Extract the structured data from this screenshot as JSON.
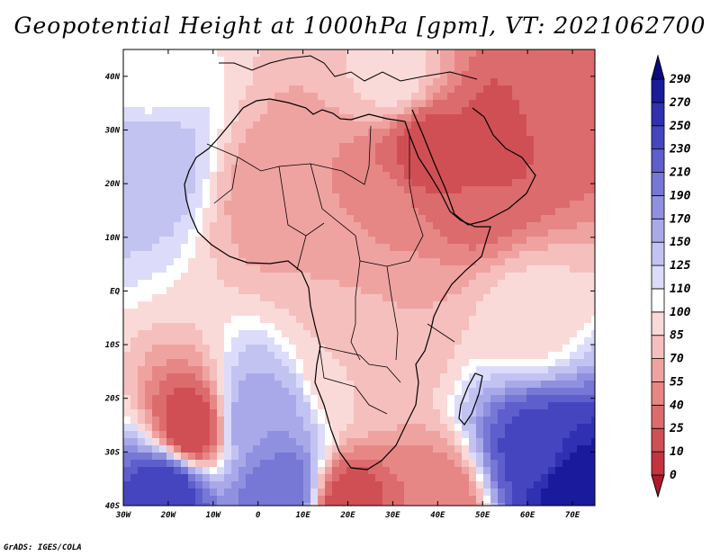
{
  "title": "Geopotential Height at 1000hPa [gpm], VT: 2021062700",
  "credit": "GrADS: IGES/COLA",
  "map": {
    "lon_range": [
      -30,
      75
    ],
    "lat_range": [
      -40,
      45
    ],
    "lon_ticks": [
      {
        "value": -30,
        "label": "30W"
      },
      {
        "value": -20,
        "label": "20W"
      },
      {
        "value": -10,
        "label": "10W"
      },
      {
        "value": 0,
        "label": "0"
      },
      {
        "value": 10,
        "label": "10E"
      },
      {
        "value": 20,
        "label": "20E"
      },
      {
        "value": 30,
        "label": "30E"
      },
      {
        "value": 40,
        "label": "40E"
      },
      {
        "value": 50,
        "label": "50E"
      },
      {
        "value": 60,
        "label": "60E"
      },
      {
        "value": 70,
        "label": "70E"
      }
    ],
    "lat_ticks": [
      {
        "value": 40,
        "label": "40N"
      },
      {
        "value": 30,
        "label": "30N"
      },
      {
        "value": 20,
        "label": "20N"
      },
      {
        "value": 10,
        "label": "10N"
      },
      {
        "value": 0,
        "label": "EQ"
      },
      {
        "value": -10,
        "label": "10S"
      },
      {
        "value": -20,
        "label": "20S"
      },
      {
        "value": -30,
        "label": "30S"
      },
      {
        "value": -40,
        "label": "40S"
      }
    ]
  },
  "colorbar": {
    "levels": [
      "0",
      "10",
      "25",
      "40",
      "55",
      "70",
      "85",
      "100",
      "110",
      "125",
      "150",
      "170",
      "190",
      "210",
      "230",
      "250",
      "270",
      "290"
    ],
    "colors": [
      "#b2182b",
      "#c3343f",
      "#d04f55",
      "#dc6b6d",
      "#e68786",
      "#efa3a1",
      "#f5bfbd",
      "#fadad9",
      "#ffffff",
      "#dcdcfa",
      "#c3c3f2",
      "#a9a9ea",
      "#9090e0",
      "#7777d6",
      "#5e5ecc",
      "#4545c0",
      "#3030b2",
      "#1a1a9c",
      "#0a0a80"
    ]
  },
  "field_anomalies": [
    {
      "lon": 37,
      "lat": 26,
      "value": 15
    },
    {
      "lon": 55,
      "lat": 30,
      "value": 20
    },
    {
      "lon": 65,
      "lat": 34,
      "value": 35
    },
    {
      "lon": 50,
      "lat": 20,
      "value": 25
    },
    {
      "lon": 28,
      "lat": 16,
      "value": 45
    },
    {
      "lon": 5,
      "lat": 18,
      "value": 60
    },
    {
      "lon": 20,
      "lat": 5,
      "value": 70
    },
    {
      "lon": 30,
      "lat": -5,
      "value": 70
    },
    {
      "lon": 20,
      "lat": -15,
      "value": 85
    },
    {
      "lon": 60,
      "lat": -5,
      "value": 90
    },
    {
      "lon": -15,
      "lat": -26,
      "value": 10
    },
    {
      "lon": 20,
      "lat": -40,
      "value": 15
    },
    {
      "lon": 40,
      "lat": -40,
      "value": 40
    },
    {
      "lon": 70,
      "lat": -37,
      "value": 290
    },
    {
      "lon": 62,
      "lat": -30,
      "value": 240
    },
    {
      "lon": -20,
      "lat": -37,
      "value": 250
    },
    {
      "lon": 5,
      "lat": -37,
      "value": 210
    },
    {
      "lon": -25,
      "lat": 40,
      "value": 100
    },
    {
      "lon": -25,
      "lat": 25,
      "value": 140
    },
    {
      "lon": 0,
      "lat": -25,
      "value": 170
    },
    {
      "lon": 30,
      "lat": 40,
      "value": 90
    }
  ]
}
